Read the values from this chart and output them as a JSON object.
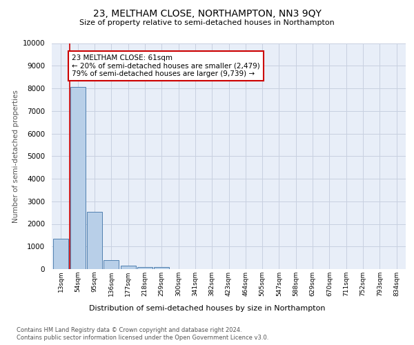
{
  "title": "23, MELTHAM CLOSE, NORTHAMPTON, NN3 9QY",
  "subtitle": "Size of property relative to semi-detached houses in Northampton",
  "xlabel": "Distribution of semi-detached houses by size in Northampton",
  "ylabel": "Number of semi-detached properties",
  "categories": [
    "13sqm",
    "54sqm",
    "95sqm",
    "136sqm",
    "177sqm",
    "218sqm",
    "259sqm",
    "300sqm",
    "341sqm",
    "382sqm",
    "423sqm",
    "464sqm",
    "505sqm",
    "547sqm",
    "588sqm",
    "629sqm",
    "670sqm",
    "711sqm",
    "752sqm",
    "793sqm",
    "834sqm"
  ],
  "bar_values": [
    1330,
    8050,
    2520,
    390,
    150,
    90,
    90,
    0,
    0,
    0,
    0,
    0,
    0,
    0,
    0,
    0,
    0,
    0,
    0,
    0,
    0
  ],
  "bar_color": "#b8cfe8",
  "bar_edge_color": "#5080b0",
  "property_line_label": "23 MELTHAM CLOSE: 61sqm",
  "smaller_pct": "20%",
  "smaller_count": "2,479",
  "larger_pct": "79%",
  "larger_count": "9,739",
  "annotation_box_color": "#ffffff",
  "annotation_box_edge": "#cc0000",
  "line_color": "#cc0000",
  "ylim": [
    0,
    10000
  ],
  "yticks": [
    0,
    1000,
    2000,
    3000,
    4000,
    5000,
    6000,
    7000,
    8000,
    9000,
    10000
  ],
  "grid_color": "#c8d0e0",
  "background_color": "#e8eef8",
  "title_fontsize": 10,
  "subtitle_fontsize": 8,
  "footer_line1": "Contains HM Land Registry data © Crown copyright and database right 2024.",
  "footer_line2": "Contains public sector information licensed under the Open Government Licence v3.0."
}
